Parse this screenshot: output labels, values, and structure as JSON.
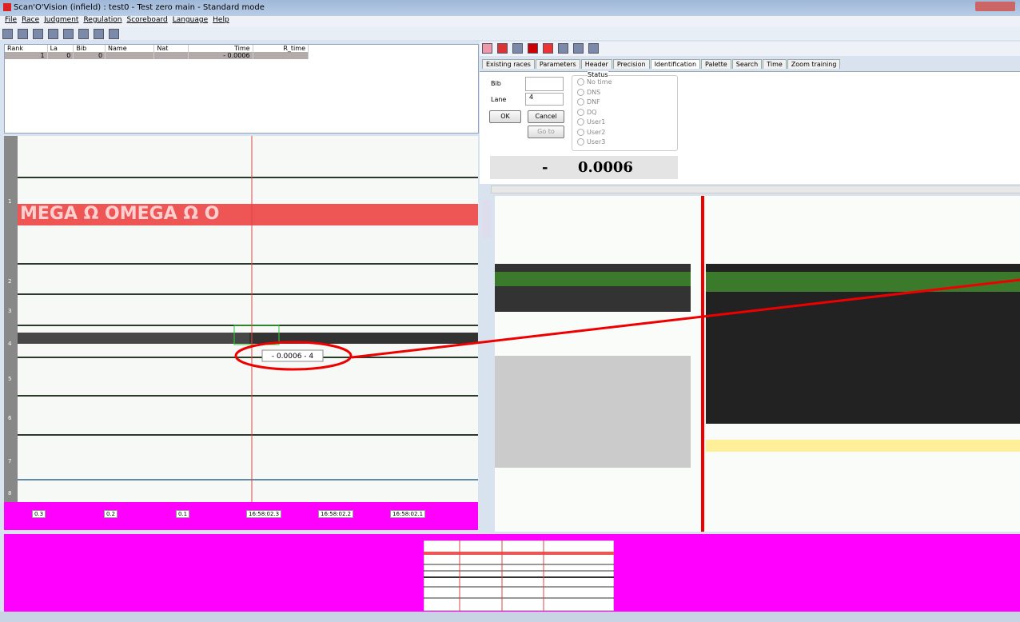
{
  "window": {
    "title": "Scan'O'Vision (infield) : test0 - Test zero main - Standard mode"
  },
  "menu": [
    "File",
    "Race",
    "Judgment",
    "Regulation",
    "Scoreboard",
    "Language",
    "Help"
  ],
  "table": {
    "headers": [
      "Rank",
      "La",
      "Bib",
      "Name",
      "Nat",
      "Time",
      "R_time"
    ],
    "rows": [
      {
        "rank": "1",
        "lane": "0",
        "bib": "0",
        "time_sign": "-",
        "time": "0.0006"
      }
    ]
  },
  "tabs": [
    "Existing races",
    "Parameters",
    "Header",
    "Precision",
    "Identification",
    "Palette",
    "Search",
    "Time",
    "Zoom training"
  ],
  "form": {
    "bib_label": "Bib",
    "lane_label": "Lane",
    "lane_value": "4",
    "ok": "OK",
    "cancel": "Cancel",
    "goto": "Go to",
    "status_label": "Status",
    "status_options": [
      "No time",
      "DNS",
      "DNF",
      "DQ",
      "User1",
      "User2",
      "User3"
    ]
  },
  "time_display": {
    "sign": "-",
    "value": "0.0006"
  },
  "photo": {
    "banner": "MEGA  Ω  OMEGA  Ω  O",
    "lanes": [
      "1",
      "2",
      "3",
      "4",
      "5",
      "6",
      "7",
      "8"
    ],
    "marker": "- 0.0006 - 4",
    "time_labels": [
      "0.3",
      "0.2",
      "0.1",
      "16:58:02.3",
      "16:58:02.2",
      "16:58:02.1"
    ]
  }
}
